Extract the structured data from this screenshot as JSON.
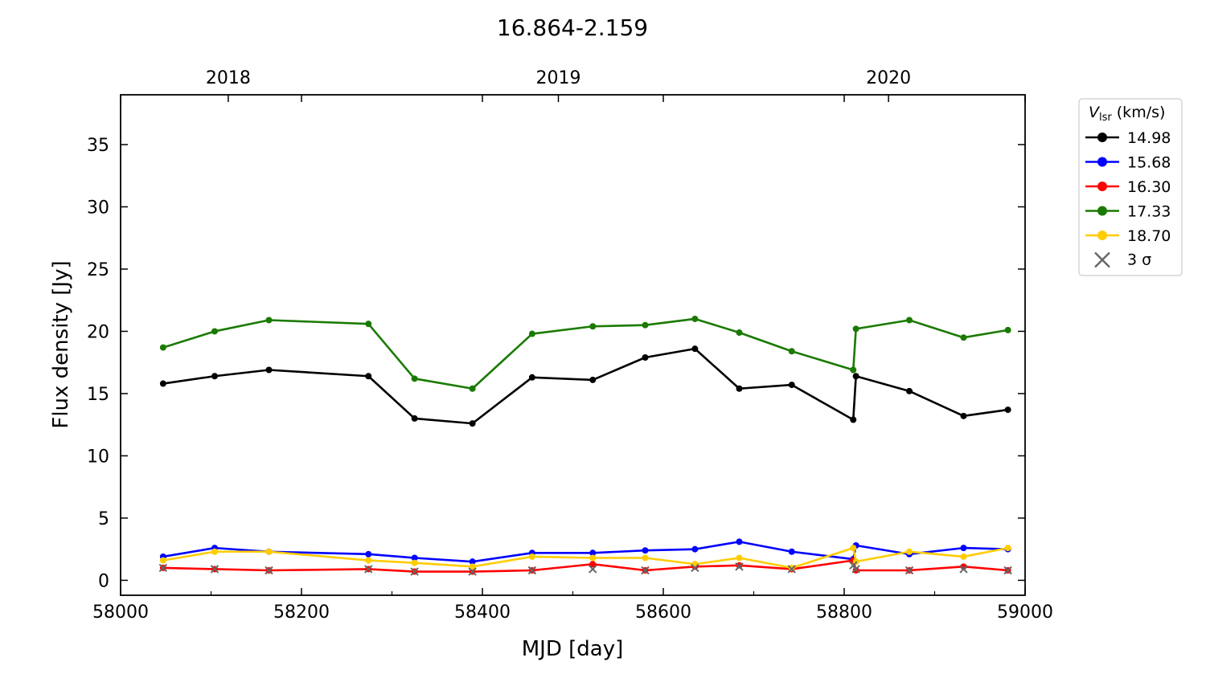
{
  "chart_data": {
    "type": "line",
    "title": "16.864-2.159",
    "xlabel": "MJD [day]",
    "ylabel": "Flux density [Jy]",
    "xlim": [
      58000,
      59000
    ],
    "ylim": [
      -1.2,
      39
    ],
    "x_ticks": [
      58000,
      58200,
      58400,
      58600,
      58800,
      59000
    ],
    "x_tick_labels": [
      "58000",
      "58200",
      "58400",
      "58600",
      "58800",
      "59000"
    ],
    "y_ticks": [
      0,
      5,
      10,
      15,
      20,
      25,
      30,
      35
    ],
    "y_tick_labels": [
      "0",
      "5",
      "10",
      "15",
      "20",
      "25",
      "30",
      "35"
    ],
    "top_axis": {
      "ticks": [
        58119,
        58484,
        58849
      ],
      "labels": [
        "2018",
        "2019",
        "2020"
      ]
    },
    "legend": {
      "title_main": "V",
      "title_sub": "lsr",
      "title_unit": " (km/s)",
      "position": "outside-right",
      "sigma_label": "3 σ"
    },
    "x": [
      58047,
      58104,
      58164,
      58274,
      58325,
      58389,
      58455,
      58522,
      58580,
      58635,
      58684,
      58742,
      58810,
      58813,
      58872,
      58932,
      58981
    ],
    "series": [
      {
        "name": "14.98",
        "color": "#000000",
        "values": [
          15.8,
          16.4,
          16.9,
          16.4,
          13.0,
          12.6,
          16.3,
          16.1,
          17.9,
          18.6,
          15.4,
          15.7,
          12.9,
          16.4,
          15.2,
          13.2,
          13.7
        ]
      },
      {
        "name": "15.68",
        "color": "#0000ff",
        "values": [
          1.9,
          2.6,
          2.3,
          2.1,
          1.8,
          1.5,
          2.2,
          2.2,
          2.4,
          2.5,
          3.1,
          2.3,
          1.7,
          2.8,
          2.1,
          2.6,
          2.5
        ]
      },
      {
        "name": "16.30",
        "color": "#ff0000",
        "values": [
          1.0,
          0.9,
          0.8,
          0.9,
          0.7,
          0.7,
          0.8,
          1.3,
          0.8,
          1.1,
          1.2,
          0.9,
          1.6,
          0.8,
          0.8,
          1.1,
          0.8
        ]
      },
      {
        "name": "17.33",
        "color": "#1a7a00",
        "values": [
          18.7,
          20.0,
          20.9,
          20.6,
          16.2,
          15.4,
          19.8,
          20.4,
          20.5,
          21.0,
          19.9,
          18.4,
          16.9,
          20.2,
          20.9,
          19.5,
          20.1
        ]
      },
      {
        "name": "18.70",
        "color": "#ffcc00",
        "values": [
          1.6,
          2.3,
          2.3,
          1.6,
          1.4,
          1.1,
          1.9,
          1.8,
          1.8,
          1.3,
          1.8,
          1.0,
          2.6,
          1.5,
          2.3,
          1.9,
          2.6
        ]
      }
    ],
    "sigma3": {
      "name": "3 σ",
      "color": "#666666",
      "values": [
        1.0,
        0.9,
        0.8,
        0.9,
        0.7,
        0.7,
        0.8,
        0.9,
        0.8,
        1.0,
        1.1,
        0.9,
        1.2,
        0.9,
        0.8,
        0.9,
        0.8
      ]
    }
  }
}
